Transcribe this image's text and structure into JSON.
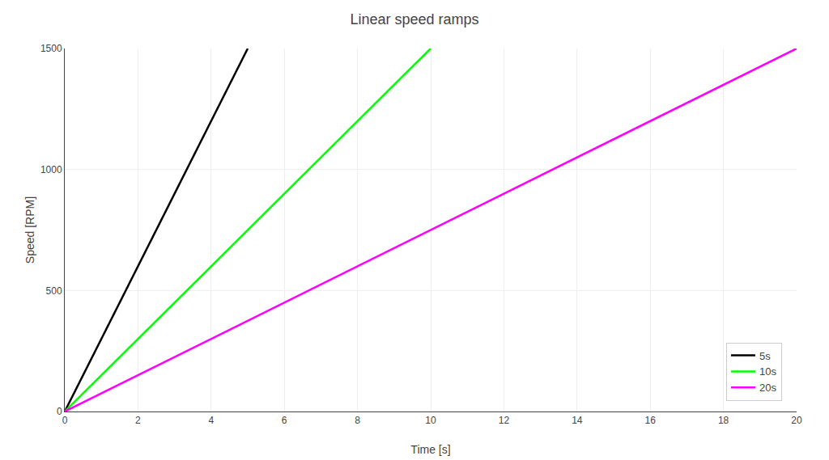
{
  "chart_data": {
    "type": "line",
    "title": "Linear speed ramps",
    "xlabel": "Time [s]",
    "ylabel": "Speed [RPM]",
    "series": [
      {
        "name": "5s",
        "color": "#000000",
        "x": [
          0,
          5
        ],
        "values": [
          0,
          1500
        ]
      },
      {
        "name": "10s",
        "color": "#00ff00",
        "x": [
          0,
          10
        ],
        "values": [
          0,
          1500
        ]
      },
      {
        "name": "20s",
        "color": "#ff00ff",
        "x": [
          0,
          20
        ],
        "values": [
          0,
          1500
        ]
      }
    ],
    "xlim": [
      0,
      20
    ],
    "xticks": [
      0,
      2,
      4,
      6,
      8,
      10,
      12,
      14,
      16,
      18,
      20
    ],
    "ylim": [
      0,
      1500
    ],
    "yticks": [
      0,
      500,
      1000,
      1500
    ],
    "grid": true,
    "legend": "lower right"
  }
}
